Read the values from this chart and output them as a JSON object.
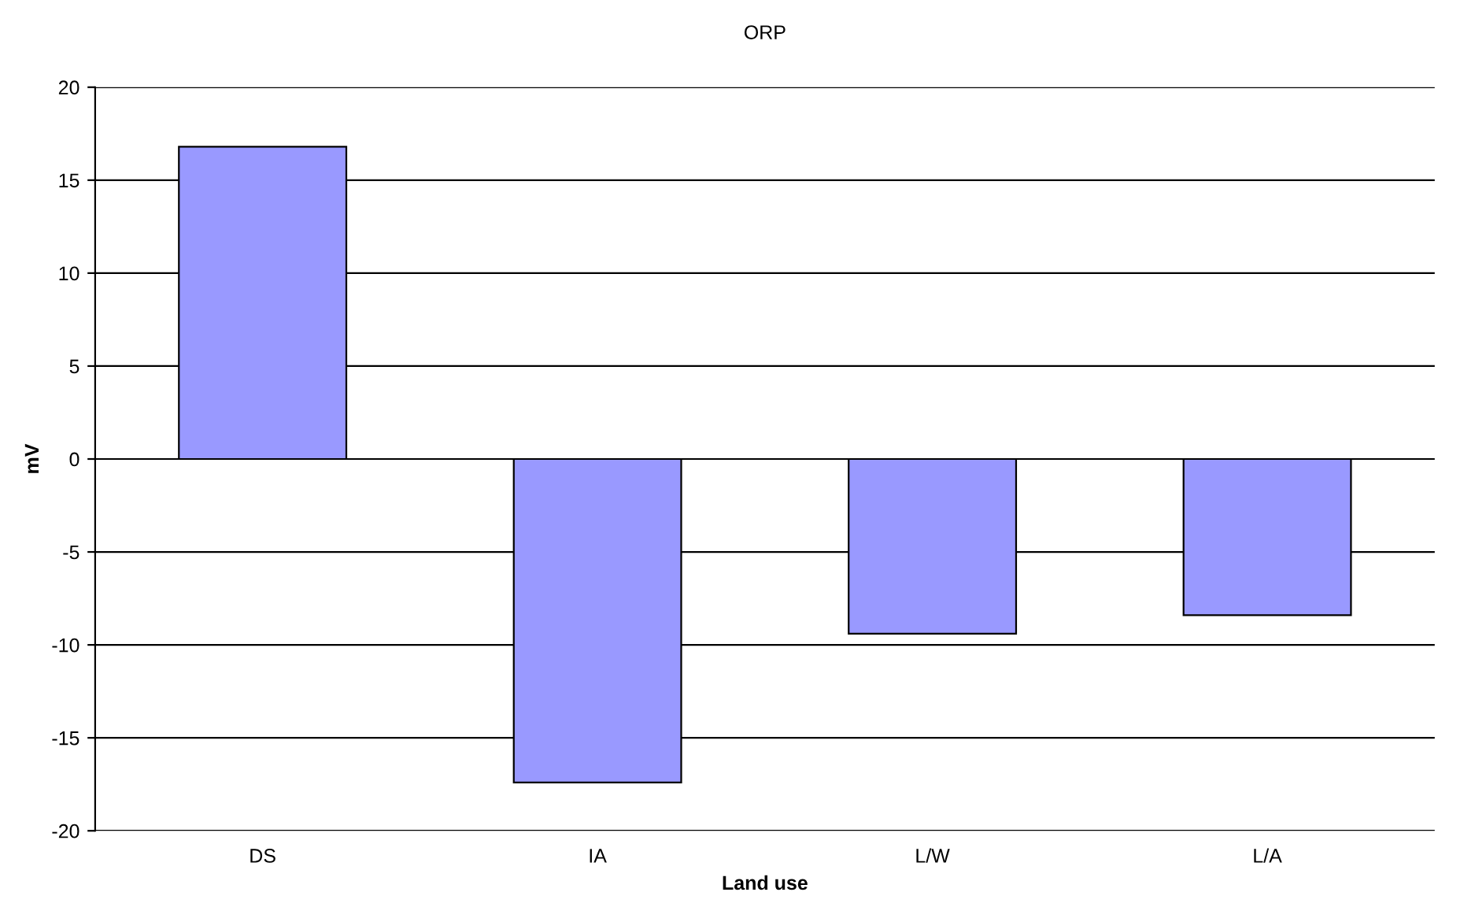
{
  "chart_data": {
    "type": "bar",
    "title": "ORP",
    "xlabel": "Land use",
    "ylabel": "mV",
    "categories": [
      "DS",
      "IA",
      "L/W",
      "L/A"
    ],
    "series": [
      {
        "color": "#9999ff",
        "values": [
          16.8,
          -17.4,
          -9.4,
          -8.4
        ]
      }
    ],
    "ylim": [
      -20,
      20
    ],
    "yticks": [
      -20,
      -15,
      -10,
      -5,
      0,
      5,
      10,
      15,
      20
    ],
    "grid": "y",
    "legend": false
  }
}
